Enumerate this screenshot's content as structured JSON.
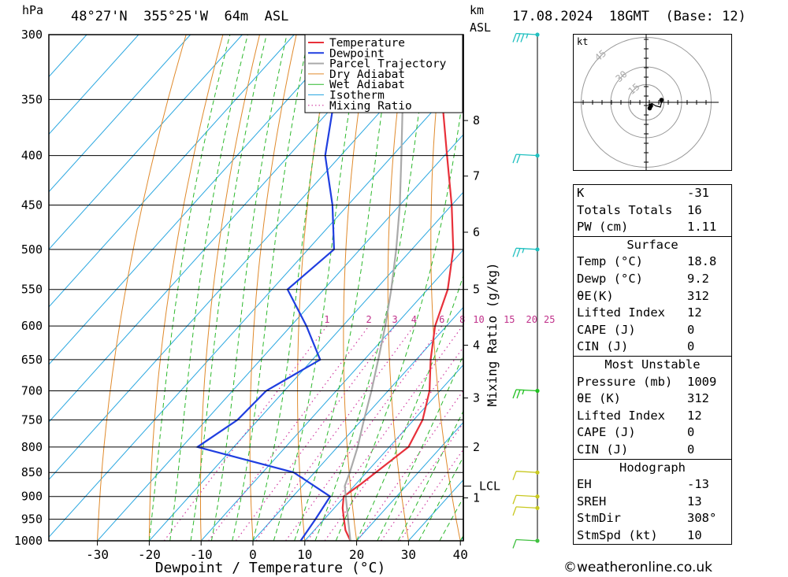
{
  "header": {
    "hpa_label": "hPa",
    "location": "48°27'N  355°25'W  64m  ASL",
    "km_label": "km",
    "asl_label": "ASL",
    "datetime": "17.08.2024  18GMT  (Base: 12)"
  },
  "chart_data": {
    "type": "line",
    "title": "Skew-T log-P sounding",
    "xlabel": "Dewpoint / Temperature (°C)",
    "ylabel": "hPa",
    "mixing_ratio_axis_label": "Mixing Ratio (g/kg)",
    "xlim": [
      -40,
      40
    ],
    "ylim": [
      1000,
      300
    ],
    "x_ticks": [
      -30,
      -20,
      -10,
      0,
      10,
      20,
      30,
      40
    ],
    "pressure_levels": [
      300,
      350,
      400,
      450,
      500,
      550,
      600,
      650,
      700,
      750,
      800,
      850,
      900,
      950,
      1000
    ],
    "km_ticks": [
      {
        "label": "8",
        "p": 368
      },
      {
        "label": "7",
        "p": 420
      },
      {
        "label": "6",
        "p": 480
      },
      {
        "label": "5",
        "p": 550
      },
      {
        "label": "4",
        "p": 628
      },
      {
        "label": "3",
        "p": 712
      },
      {
        "label": "2",
        "p": 800
      },
      {
        "label": "1",
        "p": 903
      }
    ],
    "lcl": {
      "label": "LCL",
      "p": 878
    },
    "mixing_ratio_labels": [
      "1",
      "2",
      "3",
      "4",
      "6",
      "8",
      "10",
      "15",
      "20",
      "25"
    ],
    "legend": [
      "Temperature",
      "Dewpoint",
      "Parcel Trajectory",
      "Dry Adiabat",
      "Wet Adiabat",
      "Isotherm",
      "Mixing Ratio"
    ],
    "legend_position": "top-right",
    "series": [
      {
        "name": "Temperature",
        "color": "#e8303a",
        "p": [
          1000,
          975,
          950,
          925,
          900,
          875,
          850,
          800,
          750,
          700,
          650,
          600,
          550,
          500,
          450,
          400,
          350,
          300
        ],
        "t": [
          18.8,
          16.0,
          13.8,
          11.6,
          9.8,
          10.9,
          11.8,
          13.7,
          11.7,
          8.0,
          2.8,
          -2.2,
          -6.1,
          -12.0,
          -20.0,
          -29.5,
          -40.2,
          -51.8
        ]
      },
      {
        "name": "Dewpoint",
        "color": "#1f3ee0",
        "p": [
          1000,
          950,
          900,
          850,
          800,
          750,
          700,
          650,
          600,
          550,
          500,
          450,
          400,
          350,
          300
        ],
        "t": [
          9.2,
          8.3,
          7.2,
          -4.0,
          -27.0,
          -24.0,
          -23.5,
          -18.5,
          -27.0,
          -37.0,
          -35.0,
          -43.0,
          -53.0,
          -61.0,
          -70.0
        ]
      },
      {
        "name": "Parcel Trajectory",
        "color": "#aaaaaa",
        "p": [
          1000,
          950,
          900,
          878,
          850,
          800,
          750,
          700,
          650,
          600,
          550,
          500,
          450,
          400,
          350,
          300
        ],
        "t": [
          18.8,
          14.6,
          10.2,
          8.2,
          6.8,
          3.9,
          0.4,
          -3.2,
          -7.3,
          -11.8,
          -17.0,
          -23.0,
          -30.0,
          -38.3,
          -47.8,
          -58.5
        ]
      }
    ],
    "wind_barbs": [
      {
        "p": 300,
        "color": "#20c0c0",
        "dir_deg": 290,
        "speed_kt": 25
      },
      {
        "p": 400,
        "color": "#20c0c0",
        "dir_deg": 280,
        "speed_kt": 20
      },
      {
        "p": 500,
        "color": "#20c0c0",
        "dir_deg": 300,
        "speed_kt": 15
      },
      {
        "p": 700,
        "color": "#20c020",
        "dir_deg": 290,
        "speed_kt": 15
      },
      {
        "p": 850,
        "color": "#c8c820",
        "dir_deg": 320,
        "speed_kt": 10
      },
      {
        "p": 900,
        "color": "#c8c820",
        "dir_deg": 310,
        "speed_kt": 10
      },
      {
        "p": 925,
        "color": "#c8c820",
        "dir_deg": 320,
        "speed_kt": 10
      },
      {
        "p": 1000,
        "color": "#40c040",
        "dir_deg": 330,
        "speed_kt": 10
      }
    ],
    "hodograph": {
      "unit_label": "kt",
      "ring_labels": [
        "15",
        "30",
        "45"
      ],
      "rings_kt": [
        15,
        30,
        45
      ],
      "trace": [
        {
          "u": 2,
          "v": -2
        },
        {
          "u": 5,
          "v": -1
        },
        {
          "u": 8,
          "v": -3
        },
        {
          "u": 12,
          "v": -4
        },
        {
          "u": 13,
          "v": 0
        },
        {
          "u": 13,
          "v": 2
        }
      ],
      "markers": [
        {
          "u": 4,
          "v": -3
        },
        {
          "u": 3,
          "v": -5
        },
        {
          "u": 13,
          "v": 2
        }
      ]
    }
  },
  "indices": {
    "general": [
      {
        "key": "K",
        "value": "-31"
      },
      {
        "key": "Totals Totals",
        "value": "16"
      },
      {
        "key": "PW (cm)",
        "value": "1.11"
      }
    ],
    "surface_title": "Surface",
    "surface": [
      {
        "key": "Temp (°C)",
        "value": "18.8"
      },
      {
        "key": "Dewp (°C)",
        "value": "9.2"
      },
      {
        "key": "θE(K)",
        "value": "312"
      },
      {
        "key": "Lifted Index",
        "value": "12"
      },
      {
        "key": "CAPE (J)",
        "value": "0"
      },
      {
        "key": "CIN (J)",
        "value": "0"
      }
    ],
    "mu_title": "Most Unstable",
    "mu": [
      {
        "key": "Pressure (mb)",
        "value": "1009"
      },
      {
        "key": "θE (K)",
        "value": "312"
      },
      {
        "key": "Lifted Index",
        "value": "12"
      },
      {
        "key": "CAPE (J)",
        "value": "0"
      },
      {
        "key": "CIN (J)",
        "value": "0"
      }
    ],
    "hodo_title": "Hodograph",
    "hodo": [
      {
        "key": "EH",
        "value": "-13"
      },
      {
        "key": "SREH",
        "value": "13"
      },
      {
        "key": "StmDir",
        "value": "308°"
      },
      {
        "key": "StmSpd (kt)",
        "value": "10"
      }
    ]
  },
  "footer": {
    "credit": "©weatheronline.co.uk"
  }
}
